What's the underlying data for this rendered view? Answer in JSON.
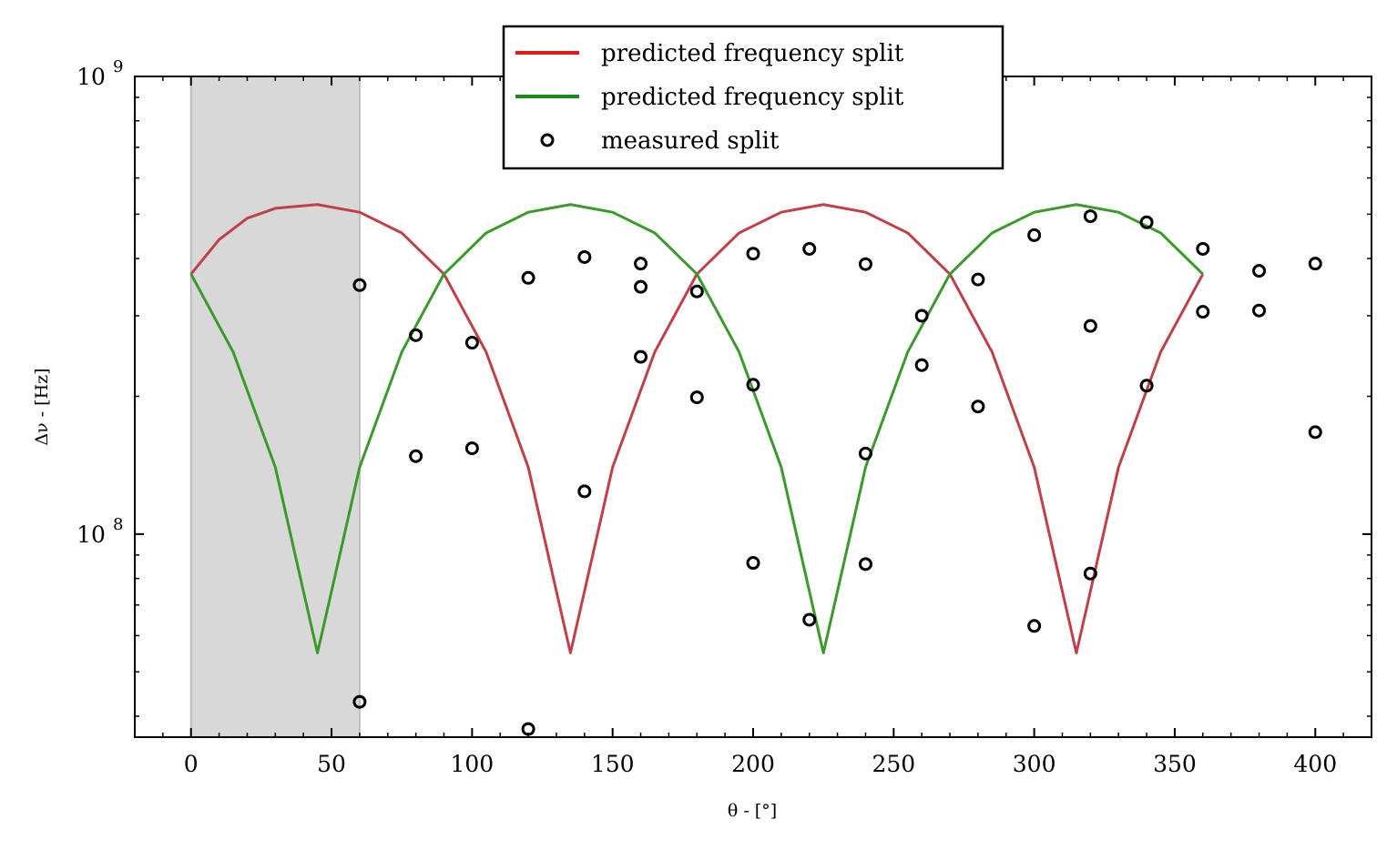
{
  "chart_data": {
    "type": "scatter",
    "xlabel": "θ - [°]",
    "ylabel": "Δν - [Hz]",
    "xlim": [
      -20,
      420
    ],
    "ylim": [
      36000000,
      1000000000
    ],
    "yscale": "log",
    "x_ticks": [
      "0",
      "50",
      "100",
      "150",
      "200",
      "250",
      "300",
      "350",
      "400"
    ],
    "y_ticks": [
      {
        "base": "10",
        "exp": "8",
        "value": 100000000
      },
      {
        "base": "10",
        "exp": "9",
        "value": 1000000000
      }
    ],
    "shaded_region": {
      "x": [
        0,
        60
      ],
      "color": "#d8d8d8"
    },
    "legend": {
      "location": "top-center",
      "entries": [
        {
          "label": "predicted frequency split",
          "marker": "line",
          "color": "#e31a1c"
        },
        {
          "label": "predicted frequency split",
          "marker": "line",
          "color": "#1a8a1a"
        },
        {
          "label": "measured split",
          "marker": "circle",
          "color": "#000000"
        }
      ]
    },
    "series": [
      {
        "kind": "line",
        "color": "#c0404a",
        "description": "|sin(2θ)| type branch",
        "points": [
          [
            0,
            370000000
          ],
          [
            10,
            440000000
          ],
          [
            20,
            490000000
          ],
          [
            30,
            515000000
          ],
          [
            45,
            525000000
          ],
          [
            60,
            505000000
          ],
          [
            75,
            455000000
          ],
          [
            90,
            370000000
          ],
          [
            105,
            250000000
          ],
          [
            120,
            140000000
          ],
          [
            130,
            75000000
          ],
          [
            135,
            55000000
          ],
          [
            140,
            75000000
          ],
          [
            150,
            140000000
          ],
          [
            165,
            250000000
          ],
          [
            180,
            370000000
          ],
          [
            195,
            455000000
          ],
          [
            210,
            505000000
          ],
          [
            225,
            525000000
          ],
          [
            240,
            505000000
          ],
          [
            255,
            455000000
          ],
          [
            270,
            370000000
          ],
          [
            285,
            250000000
          ],
          [
            300,
            140000000
          ],
          [
            310,
            75000000
          ],
          [
            315,
            55000000
          ],
          [
            320,
            75000000
          ],
          [
            330,
            140000000
          ],
          [
            345,
            250000000
          ],
          [
            360,
            370000000
          ]
        ]
      },
      {
        "kind": "line",
        "color": "#3a9a2a",
        "description": "|cos(2θ)| type branch",
        "points": [
          [
            0,
            370000000
          ],
          [
            15,
            250000000
          ],
          [
            30,
            140000000
          ],
          [
            40,
            75000000
          ],
          [
            45,
            55000000
          ],
          [
            50,
            75000000
          ],
          [
            60,
            140000000
          ],
          [
            75,
            250000000
          ],
          [
            90,
            370000000
          ],
          [
            105,
            455000000
          ],
          [
            120,
            505000000
          ],
          [
            135,
            525000000
          ],
          [
            150,
            505000000
          ],
          [
            165,
            455000000
          ],
          [
            180,
            370000000
          ],
          [
            195,
            250000000
          ],
          [
            210,
            140000000
          ],
          [
            220,
            75000000
          ],
          [
            225,
            55000000
          ],
          [
            230,
            75000000
          ],
          [
            240,
            140000000
          ],
          [
            255,
            250000000
          ],
          [
            270,
            370000000
          ],
          [
            285,
            455000000
          ],
          [
            300,
            505000000
          ],
          [
            315,
            525000000
          ],
          [
            330,
            505000000
          ],
          [
            345,
            455000000
          ],
          [
            360,
            370000000
          ]
        ]
      },
      {
        "kind": "scatter",
        "name": "measured split",
        "color": "#000000",
        "points": [
          [
            60,
            350000000
          ],
          [
            60,
            43000000
          ],
          [
            80,
            272000000
          ],
          [
            80,
            148000000
          ],
          [
            100,
            262000000
          ],
          [
            100,
            154000000
          ],
          [
            120,
            363000000
          ],
          [
            120,
            37500000
          ],
          [
            140,
            403000000
          ],
          [
            140,
            124000000
          ],
          [
            160,
            390000000
          ],
          [
            160,
            347000000
          ],
          [
            160,
            244000000
          ],
          [
            180,
            339000000
          ],
          [
            180,
            199000000
          ],
          [
            200,
            410000000
          ],
          [
            200,
            212000000
          ],
          [
            200,
            86500000
          ],
          [
            220,
            420000000
          ],
          [
            220,
            65000000
          ],
          [
            240,
            389000000
          ],
          [
            240,
            150000000
          ],
          [
            240,
            86000000
          ],
          [
            260,
            300000000
          ],
          [
            260,
            234000000
          ],
          [
            280,
            360000000
          ],
          [
            280,
            190000000
          ],
          [
            300,
            450000000
          ],
          [
            300,
            63000000
          ],
          [
            320,
            495000000
          ],
          [
            320,
            285000000
          ],
          [
            320,
            82000000
          ],
          [
            340,
            480000000
          ],
          [
            340,
            211000000
          ],
          [
            360,
            420000000
          ],
          [
            360,
            306000000
          ],
          [
            380,
            376000000
          ],
          [
            380,
            308000000
          ],
          [
            400,
            390000000
          ],
          [
            400,
            167000000
          ]
        ]
      }
    ]
  }
}
